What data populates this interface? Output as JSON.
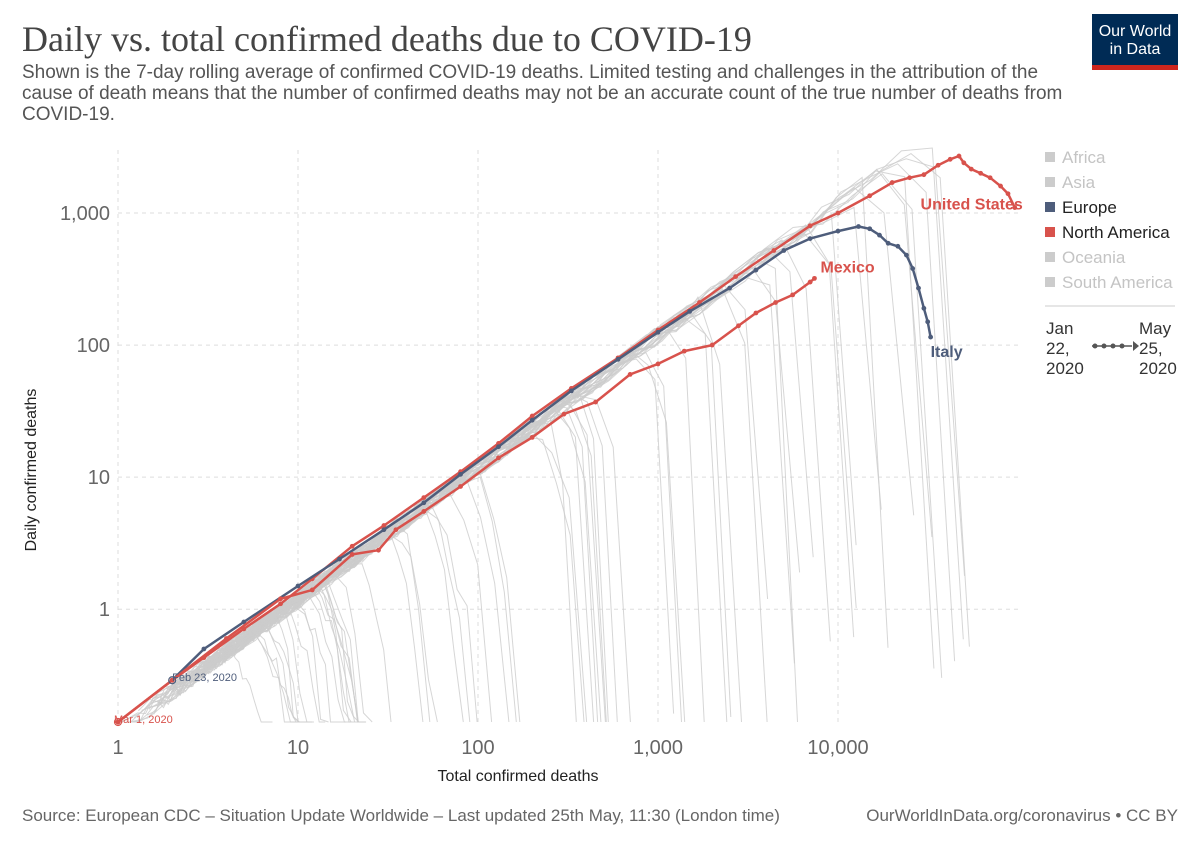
{
  "header": {
    "title": "Daily vs. total confirmed deaths due to COVID-19",
    "subtitle": "Shown is the 7-day rolling average of confirmed COVID-19 deaths. Limited testing and challenges in the attribution of the cause of death means that the number of confirmed deaths may not be an accurate count of the true number of deaths from COVID-19."
  },
  "logo": {
    "line1": "Our World",
    "line2": "in Data",
    "colors": {
      "bg": "#002b55",
      "bar": "#ce261e"
    }
  },
  "footer": {
    "source": "Source: European CDC – Situation Update Worldwide – Last updated 25th May, 11:30 (London time)",
    "credit": "OurWorldInData.org/coronavirus • CC BY"
  },
  "colors": {
    "europe": "#4e5d7b",
    "north_america": "#d8524c",
    "muted": "#cccccc",
    "grid": "#dddddd"
  },
  "legend": {
    "items": [
      {
        "label": "Africa",
        "active": false
      },
      {
        "label": "Asia",
        "active": false
      },
      {
        "label": "Europe",
        "active": true,
        "color": "#4e5d7b"
      },
      {
        "label": "North America",
        "active": true,
        "color": "#d8524c"
      },
      {
        "label": "Oceania",
        "active": false
      },
      {
        "label": "South America",
        "active": false
      }
    ]
  },
  "timeline": {
    "start": [
      "Jan",
      "22,",
      "2020"
    ],
    "end": [
      "May",
      "25,",
      "2020"
    ]
  },
  "chart_data": {
    "type": "line",
    "title": "Daily vs. total confirmed deaths due to COVID-19",
    "xlabel": "Total confirmed deaths",
    "ylabel": "Daily confirmed deaths",
    "xscale": "log",
    "yscale": "log",
    "xlim": [
      1,
      100000
    ],
    "ylim": [
      0.14,
      3000
    ],
    "xticks": [
      {
        "value": 1,
        "label": "1"
      },
      {
        "value": 10,
        "label": "10"
      },
      {
        "value": 100,
        "label": "100"
      },
      {
        "value": 1000,
        "label": "1,000"
      },
      {
        "value": 10000,
        "label": "10,000"
      }
    ],
    "yticks": [
      {
        "value": 1,
        "label": "1"
      },
      {
        "value": 10,
        "label": "10"
      },
      {
        "value": 100,
        "label": "100"
      },
      {
        "value": 1000,
        "label": "1,000"
      }
    ],
    "grid": true,
    "legend_position": "right",
    "series": [
      {
        "name": "United States",
        "continent": "North America",
        "color": "#d8524c",
        "points": [
          [
            1,
            0.14
          ],
          [
            2,
            0.29
          ],
          [
            3,
            0.43
          ],
          [
            5,
            0.71
          ],
          [
            8,
            1.1
          ],
          [
            12,
            1.7
          ],
          [
            20,
            3
          ],
          [
            30,
            4.3
          ],
          [
            50,
            7
          ],
          [
            80,
            11
          ],
          [
            130,
            18
          ],
          [
            200,
            29
          ],
          [
            330,
            47
          ],
          [
            600,
            80
          ],
          [
            1000,
            130
          ],
          [
            1700,
            210
          ],
          [
            2700,
            330
          ],
          [
            4400,
            520
          ],
          [
            7000,
            800
          ],
          [
            10000,
            1000
          ],
          [
            15000,
            1350
          ],
          [
            20000,
            1700
          ],
          [
            25000,
            1850
          ],
          [
            30000,
            1950
          ],
          [
            36000,
            2300
          ],
          [
            42000,
            2550
          ],
          [
            47000,
            2700
          ],
          [
            50000,
            2400
          ],
          [
            55000,
            2150
          ],
          [
            62000,
            2000
          ],
          [
            70000,
            1850
          ],
          [
            80000,
            1600
          ],
          [
            88000,
            1400
          ],
          [
            96000,
            1100
          ]
        ]
      },
      {
        "name": "Italy",
        "continent": "Europe",
        "color": "#4e5d7b",
        "points": [
          [
            2,
            0.29
          ],
          [
            3,
            0.5
          ],
          [
            5,
            0.8
          ],
          [
            10,
            1.5
          ],
          [
            17,
            2.4
          ],
          [
            30,
            4
          ],
          [
            50,
            6.4
          ],
          [
            80,
            10.5
          ],
          [
            130,
            17
          ],
          [
            200,
            27
          ],
          [
            330,
            45
          ],
          [
            600,
            78
          ],
          [
            1000,
            125
          ],
          [
            1500,
            180
          ],
          [
            2500,
            270
          ],
          [
            3500,
            370
          ],
          [
            5000,
            520
          ],
          [
            7000,
            640
          ],
          [
            10000,
            730
          ],
          [
            13000,
            790
          ],
          [
            15000,
            760
          ],
          [
            17000,
            680
          ],
          [
            19000,
            590
          ],
          [
            21500,
            560
          ],
          [
            24000,
            480
          ],
          [
            26000,
            380
          ],
          [
            28000,
            270
          ],
          [
            30000,
            190
          ],
          [
            31500,
            150
          ],
          [
            32700,
            115
          ]
        ]
      },
      {
        "name": "Mexico",
        "continent": "North America",
        "color": "#d8524c",
        "points": [
          [
            1,
            0.14
          ],
          [
            2,
            0.29
          ],
          [
            4,
            0.6
          ],
          [
            8,
            1.2
          ],
          [
            12,
            1.4
          ],
          [
            20,
            2.6
          ],
          [
            28,
            2.8
          ],
          [
            35,
            4
          ],
          [
            50,
            5.5
          ],
          [
            80,
            8.5
          ],
          [
            130,
            14
          ],
          [
            200,
            20
          ],
          [
            300,
            30
          ],
          [
            450,
            37
          ],
          [
            700,
            60
          ],
          [
            1000,
            72
          ],
          [
            1400,
            90
          ],
          [
            2000,
            100
          ],
          [
            2800,
            140
          ],
          [
            3500,
            175
          ],
          [
            4500,
            210
          ],
          [
            5600,
            240
          ],
          [
            7000,
            300
          ],
          [
            7400,
            320
          ]
        ]
      }
    ],
    "series_labels": [
      "United States",
      "Mexico",
      "Italy"
    ],
    "annotations": [
      {
        "text": "Feb 23, 2020",
        "series": "Italy",
        "x": 2,
        "y": 0.29
      },
      {
        "text": "Mar 1, 2020",
        "series": "United States",
        "x": 1,
        "y": 0.14
      }
    ]
  }
}
